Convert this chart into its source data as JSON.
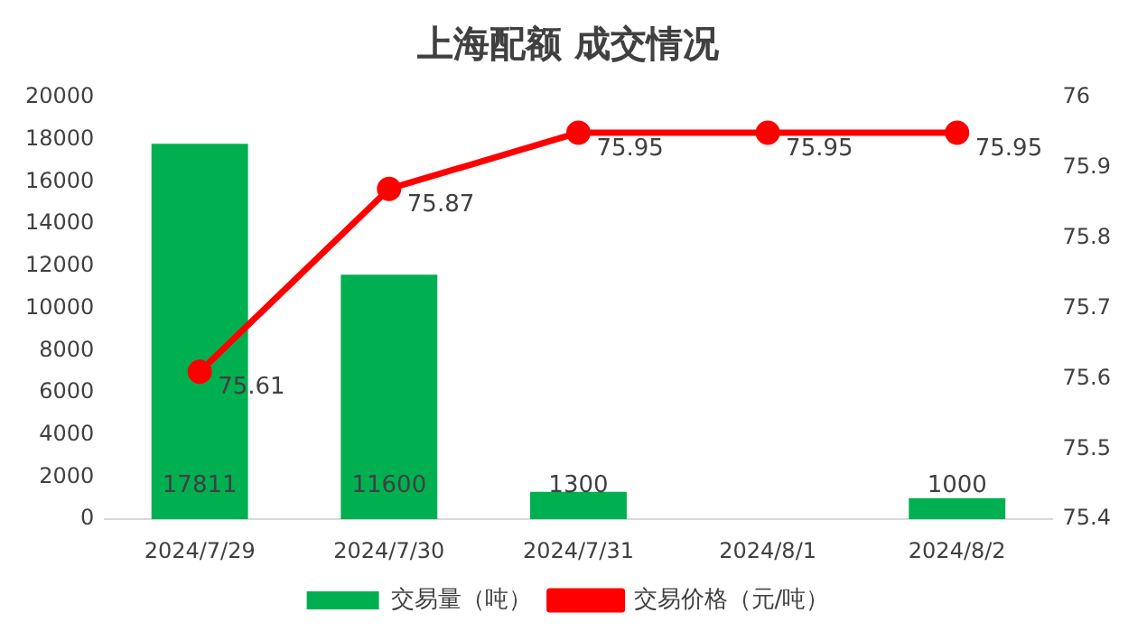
{
  "chart_data": {
    "type": "bar",
    "title": "上海配额 成交情况",
    "categories": [
      "2024/7/29",
      "2024/7/30",
      "2024/7/31",
      "2024/8/1",
      "2024/8/2"
    ],
    "series": [
      {
        "name": "交易量（吨）",
        "color": "#00b050",
        "values": [
          17811,
          11600,
          1300,
          null,
          1000
        ]
      },
      {
        "name": "交易价格（元/吨）",
        "type": "line",
        "axis": "y2",
        "color": "#ff0000",
        "values": [
          75.61,
          75.87,
          75.95,
          75.95,
          75.95
        ]
      }
    ],
    "ylim": [
      0,
      20000
    ],
    "yticks": [
      0,
      2000,
      4000,
      6000,
      8000,
      10000,
      12000,
      14000,
      16000,
      18000,
      20000
    ],
    "y2lim": [
      75.4,
      76
    ],
    "y2ticks": [
      75.4,
      75.5,
      75.6,
      75.7,
      75.8,
      75.9,
      76
    ],
    "data_labels": true,
    "legend": "bottom",
    "marker": "circle",
    "line_style": "solid",
    "grid": false
  }
}
